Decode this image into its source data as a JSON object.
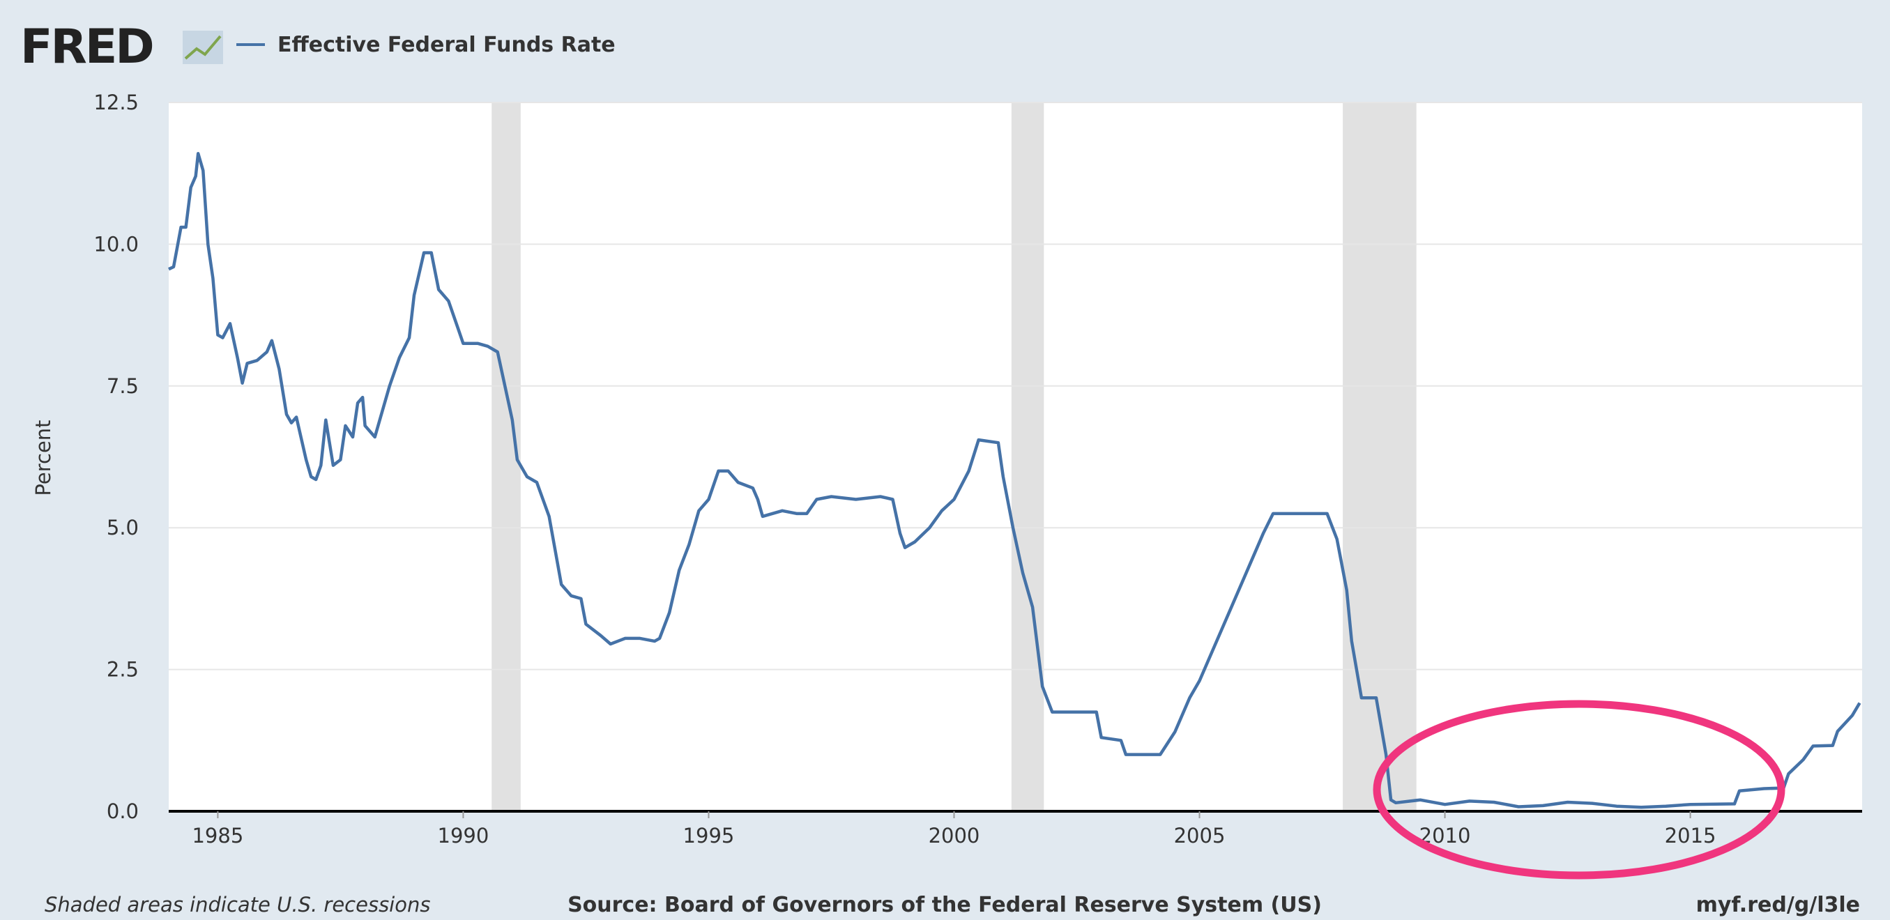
{
  "chart_data": {
    "type": "line",
    "brand": "FRED",
    "y_label": "Percent",
    "footnote": "Shaded areas indicate U.S. recessions",
    "source": "Source: Board of Governors of the Federal Reserve System (US)",
    "link": "myf.red/g/l3le",
    "x": [
      1984.0,
      1984.1,
      1984.25,
      1984.35,
      1984.45,
      1984.55,
      1984.6,
      1984.7,
      1984.8,
      1984.9,
      1985.0,
      1985.1,
      1985.25,
      1985.4,
      1985.5,
      1985.6,
      1985.8,
      1986.0,
      1986.1,
      1986.25,
      1986.4,
      1986.5,
      1986.6,
      1986.8,
      1986.9,
      1987.0,
      1987.1,
      1987.2,
      1987.35,
      1987.5,
      1987.6,
      1987.75,
      1987.85,
      1987.95,
      1988.0,
      1988.2,
      1988.3,
      1988.5,
      1988.7,
      1988.9,
      1989.0,
      1989.2,
      1989.35,
      1989.5,
      1989.7,
      1989.9,
      1990.0,
      1990.3,
      1990.5,
      1990.7,
      1990.9,
      1991.0,
      1991.1,
      1991.3,
      1991.5,
      1991.75,
      1992.0,
      1992.2,
      1992.4,
      1992.5,
      1992.8,
      1993.0,
      1993.3,
      1993.6,
      1993.9,
      1994.0,
      1994.2,
      1994.4,
      1994.6,
      1994.8,
      1995.0,
      1995.2,
      1995.4,
      1995.6,
      1995.9,
      1996.0,
      1996.1,
      1996.5,
      1996.8,
      1997.0,
      1997.2,
      1997.5,
      1998.0,
      1998.5,
      1998.75,
      1998.9,
      1999.0,
      1999.2,
      1999.5,
      1999.75,
      2000.0,
      2000.3,
      2000.5,
      2000.9,
      2001.0,
      2001.2,
      2001.4,
      2001.6,
      2001.8,
      2002.0,
      2002.5,
      2002.9,
      2003.0,
      2003.4,
      2003.5,
      2004.0,
      2004.2,
      2004.5,
      2004.8,
      2005.0,
      2005.3,
      2005.6,
      2006.0,
      2006.3,
      2006.5,
      2007.0,
      2007.6,
      2007.8,
      2008.0,
      2008.1,
      2008.3,
      2008.6,
      2008.8,
      2008.9,
      2009.0,
      2009.5,
      2010.0,
      2010.5,
      2011.0,
      2011.5,
      2012.0,
      2012.5,
      2013.0,
      2013.5,
      2014.0,
      2014.5,
      2015.0,
      2015.9,
      2016.0,
      2016.5,
      2016.9,
      2017.0,
      2017.3,
      2017.5,
      2017.9,
      2018.0,
      2018.3,
      2018.45
    ],
    "series": [
      {
        "name": "Effective Federal Funds Rate",
        "color": "#4572a7",
        "values": [
          9.56,
          9.6,
          10.3,
          10.3,
          11.0,
          11.2,
          11.6,
          11.3,
          10.0,
          9.4,
          8.4,
          8.35,
          8.6,
          8.0,
          7.55,
          7.9,
          7.95,
          8.1,
          8.3,
          7.8,
          7.0,
          6.85,
          6.95,
          6.2,
          5.9,
          5.85,
          6.1,
          6.9,
          6.1,
          6.2,
          6.8,
          6.6,
          7.2,
          7.3,
          6.8,
          6.6,
          6.9,
          7.5,
          8.0,
          8.35,
          9.1,
          9.85,
          9.85,
          9.2,
          9.0,
          8.5,
          8.25,
          8.25,
          8.2,
          8.1,
          7.3,
          6.9,
          6.2,
          5.9,
          5.8,
          5.2,
          4.0,
          3.8,
          3.75,
          3.3,
          3.1,
          2.95,
          3.05,
          3.05,
          3.0,
          3.05,
          3.5,
          4.25,
          4.7,
          5.3,
          5.5,
          6.0,
          6.0,
          5.8,
          5.7,
          5.5,
          5.2,
          5.3,
          5.25,
          5.25,
          5.5,
          5.55,
          5.5,
          5.55,
          5.5,
          4.9,
          4.65,
          4.75,
          5.0,
          5.3,
          5.5,
          6.0,
          6.55,
          6.5,
          5.9,
          5.0,
          4.2,
          3.6,
          2.2,
          1.75,
          1.75,
          1.75,
          1.3,
          1.25,
          1.0,
          1.0,
          1.0,
          1.4,
          2.0,
          2.3,
          2.9,
          3.5,
          4.3,
          4.9,
          5.25,
          5.25,
          5.25,
          4.8,
          3.9,
          3.0,
          2.0,
          2.0,
          1.0,
          0.2,
          0.15,
          0.2,
          0.12,
          0.18,
          0.16,
          0.08,
          0.1,
          0.16,
          0.14,
          0.09,
          0.07,
          0.09,
          0.12,
          0.13,
          0.36,
          0.4,
          0.41,
          0.66,
          0.91,
          1.15,
          1.16,
          1.41,
          1.69,
          1.91
        ]
      }
    ],
    "recessions": [
      [
        1990.58,
        1991.17
      ],
      [
        2001.17,
        2001.83
      ],
      [
        2007.92,
        2009.42
      ]
    ],
    "recession_color": "#e1e1e1",
    "xlim": [
      1984.0,
      2018.5
    ],
    "xticks": [
      1985,
      1990,
      1995,
      2000,
      2005,
      2010,
      2015
    ],
    "ylim": [
      0,
      12.5
    ],
    "yticks": [
      {
        "value": 0,
        "label": "0.0"
      },
      2.5,
      {
        "value": 5,
        "label": "5.0"
      },
      7.5,
      {
        "value": 10,
        "label": "10.0"
      },
      12.5
    ],
    "grid": true
  }
}
